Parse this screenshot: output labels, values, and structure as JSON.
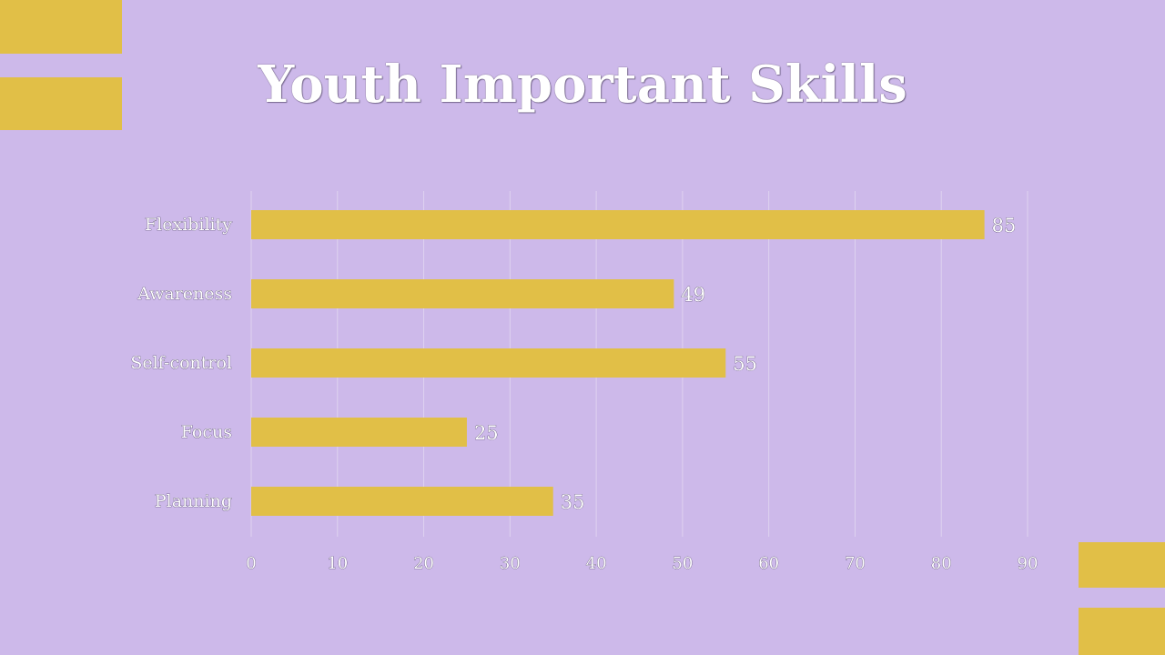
{
  "colors": {
    "background": "#cdb9ea",
    "bar": "#e1bf47",
    "gridline": "#ded3f0",
    "text": "#ffffff"
  },
  "chart_data": {
    "type": "bar",
    "orientation": "horizontal",
    "title": "Youth Important Skills",
    "categories": [
      "Flexibility",
      "Awareness",
      "Self-control",
      "Focus",
      "Planning"
    ],
    "values": [
      85,
      49,
      55,
      25,
      35
    ],
    "xlim": [
      0,
      90
    ],
    "xticks": [
      0,
      10,
      20,
      30,
      40,
      50,
      60,
      70,
      80,
      90
    ],
    "grid": true,
    "data_labels": true
  }
}
